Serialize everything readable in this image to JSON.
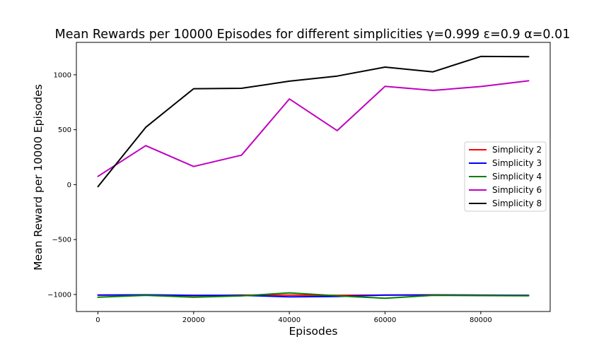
{
  "chart_data": {
    "type": "line",
    "title": "Mean Rewards per 10000 Episodes for different simplicities γ=0.999  ε=0.9  α=0.01",
    "xlabel": "Episodes",
    "ylabel": "Mean Reward per 10000 Episodes",
    "xlim": [
      -4500,
      94500
    ],
    "ylim": [
      -1155,
      1295
    ],
    "xticks": [
      0,
      20000,
      40000,
      60000,
      80000
    ],
    "xtick_labels": [
      "0",
      "20000",
      "40000",
      "60000",
      "80000"
    ],
    "yticks": [
      -1000,
      -500,
      0,
      500,
      1000
    ],
    "ytick_labels": [
      "−1000",
      "−500",
      "0",
      "500",
      "1000"
    ],
    "grid": false,
    "legend_position": "center-right",
    "x": [
      0,
      10000,
      20000,
      30000,
      40000,
      50000,
      60000,
      70000,
      80000,
      90000
    ],
    "series": [
      {
        "name": "Simplicity 2",
        "color": "#ff0000",
        "values": [
          -1005,
          -1005,
          -1010,
          -1005,
          -1005,
          -1008,
          -1005,
          -1003,
          -1005,
          -1008
        ]
      },
      {
        "name": "Simplicity 3",
        "color": "#0000ff",
        "values": [
          -1005,
          -1003,
          -1008,
          -1008,
          -1022,
          -1018,
          -1005,
          -1005,
          -1007,
          -1008
        ]
      },
      {
        "name": "Simplicity 4",
        "color": "#008000",
        "values": [
          -1025,
          -1008,
          -1025,
          -1013,
          -985,
          -1012,
          -1035,
          -1008,
          -1010,
          -1012
        ]
      },
      {
        "name": "Simplicity 6",
        "color": "#bf00bf",
        "values": [
          75,
          355,
          165,
          268,
          780,
          492,
          895,
          858,
          893,
          945
        ]
      },
      {
        "name": "Simplicity 8",
        "color": "#000000",
        "values": [
          -18,
          522,
          873,
          877,
          942,
          988,
          1070,
          1027,
          1167,
          1165
        ]
      }
    ]
  }
}
